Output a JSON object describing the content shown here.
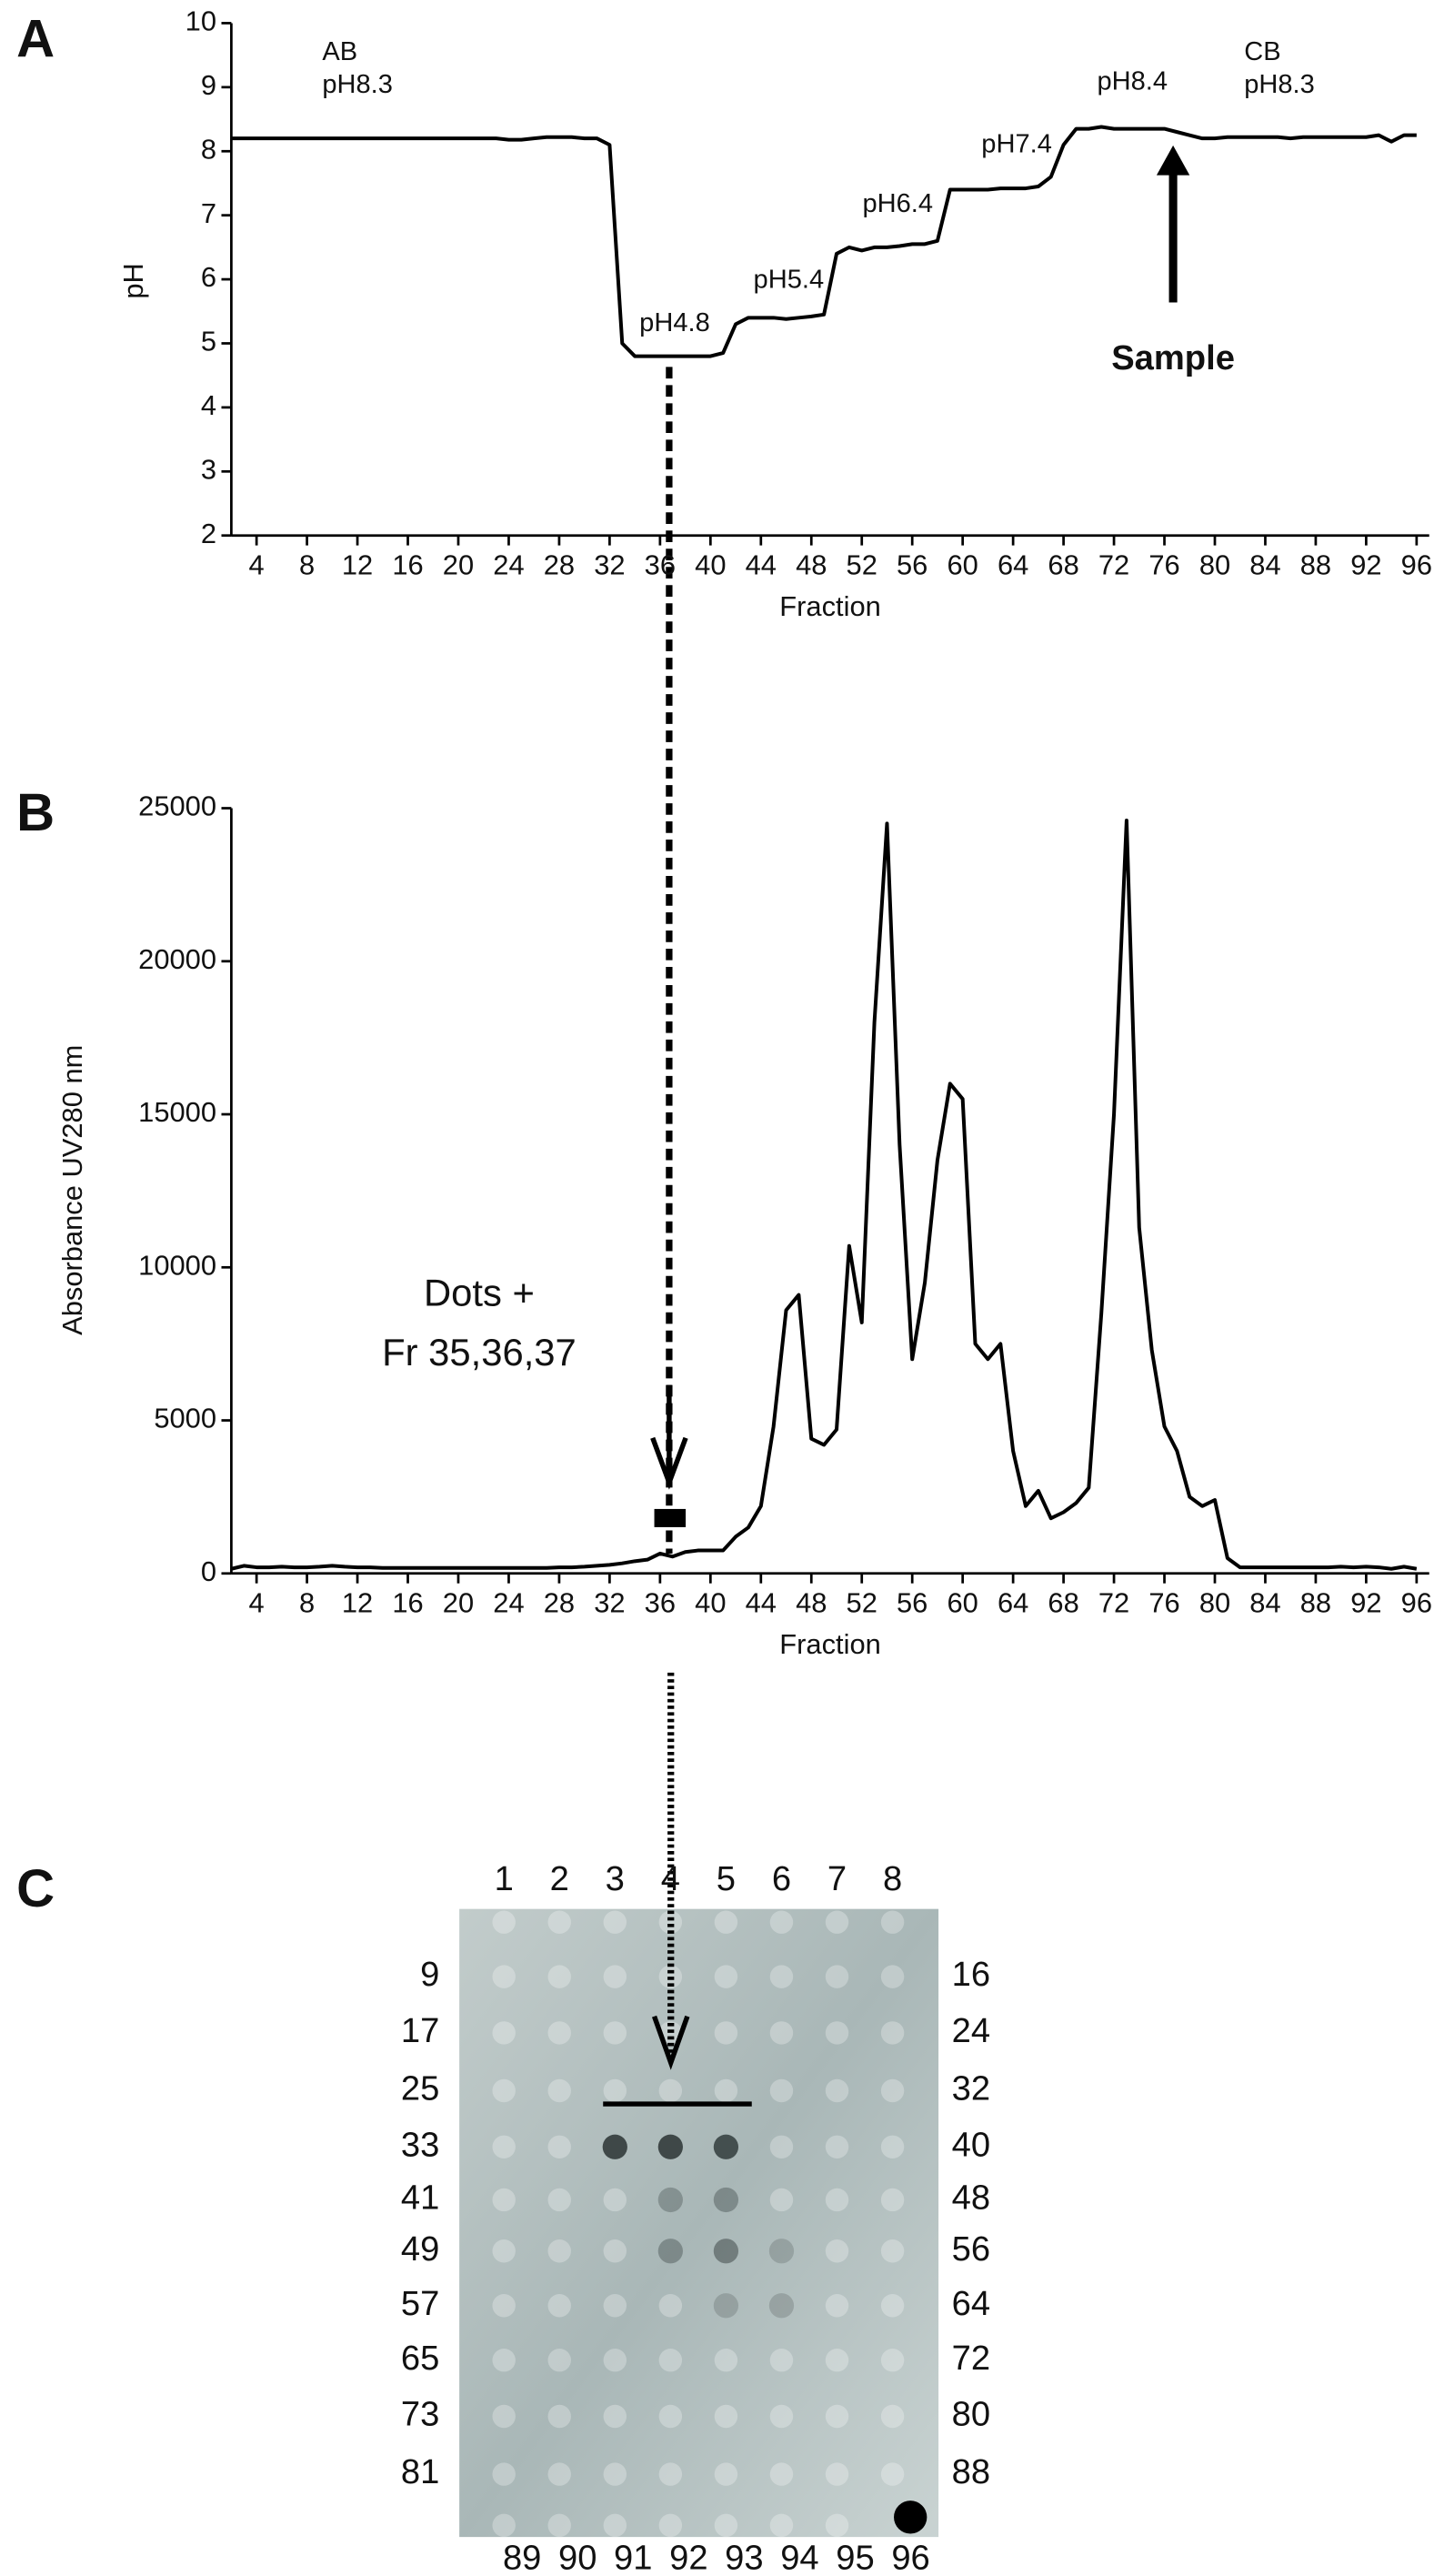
{
  "panels": [
    "A",
    "B",
    "C"
  ],
  "chart_data": [
    {
      "type": "line",
      "y_label": "pH",
      "x_label": "Fraction",
      "x": [
        2,
        3,
        4,
        5,
        6,
        7,
        8,
        9,
        10,
        11,
        12,
        13,
        14,
        15,
        16,
        17,
        18,
        19,
        20,
        21,
        22,
        23,
        24,
        25,
        26,
        27,
        28,
        29,
        30,
        31,
        32,
        33,
        34,
        35,
        36,
        37,
        38,
        39,
        40,
        41,
        42,
        43,
        44,
        45,
        46,
        47,
        48,
        49,
        50,
        51,
        52,
        53,
        54,
        55,
        56,
        57,
        58,
        59,
        60,
        61,
        62,
        63,
        64,
        65,
        66,
        67,
        68,
        69,
        70,
        71,
        72,
        73,
        74,
        75,
        76,
        77,
        78,
        79,
        80,
        81,
        82,
        83,
        84,
        85,
        86,
        87,
        88,
        89,
        90,
        91,
        92,
        93,
        94,
        95,
        96
      ],
      "values": [
        8.2,
        8.2,
        8.2,
        8.2,
        8.2,
        8.2,
        8.2,
        8.2,
        8.2,
        8.2,
        8.2,
        8.2,
        8.2,
        8.2,
        8.2,
        8.2,
        8.2,
        8.2,
        8.2,
        8.2,
        8.2,
        8.2,
        8.18,
        8.18,
        8.2,
        8.22,
        8.22,
        8.22,
        8.2,
        8.2,
        8.1,
        5.0,
        4.8,
        4.8,
        4.8,
        4.8,
        4.8,
        4.8,
        4.8,
        4.85,
        5.3,
        5.4,
        5.4,
        5.4,
        5.38,
        5.4,
        5.42,
        5.45,
        6.4,
        6.5,
        6.45,
        6.5,
        6.5,
        6.52,
        6.55,
        6.55,
        6.6,
        7.4,
        7.4,
        7.4,
        7.4,
        7.42,
        7.42,
        7.42,
        7.45,
        7.6,
        8.1,
        8.35,
        8.35,
        8.38,
        8.35,
        8.35,
        8.35,
        8.35,
        8.35,
        8.3,
        8.25,
        8.2,
        8.2,
        8.22,
        8.22,
        8.22,
        8.22,
        8.22,
        8.2,
        8.22,
        8.22,
        8.22,
        8.22,
        8.22,
        8.22,
        8.25,
        8.15,
        8.25,
        8.25
      ],
      "color": "#000000",
      "xlim": [
        2,
        97
      ],
      "xticks": [
        4,
        8,
        12,
        16,
        20,
        24,
        28,
        32,
        36,
        40,
        44,
        48,
        52,
        56,
        60,
        64,
        68,
        72,
        76,
        80,
        84,
        88,
        92,
        96
      ],
      "ylim": [
        2,
        10
      ],
      "yticks": [
        2,
        3,
        4,
        5,
        6,
        7,
        8,
        9,
        10
      ],
      "annotations": [
        "AB",
        "pH8.3",
        "pH4.8",
        "pH5.4",
        "pH6.4",
        "pH7.4",
        "pH8.4",
        "CB",
        "pH8.3",
        "Sample"
      ]
    },
    {
      "type": "line",
      "y_label": "Absorbance UV280 nm",
      "x_label": "Fraction",
      "x": [
        2,
        3,
        4,
        5,
        6,
        7,
        8,
        9,
        10,
        11,
        12,
        13,
        14,
        15,
        16,
        17,
        18,
        19,
        20,
        21,
        22,
        23,
        24,
        25,
        26,
        27,
        28,
        29,
        30,
        31,
        32,
        33,
        34,
        35,
        36,
        37,
        38,
        39,
        40,
        41,
        42,
        43,
        44,
        45,
        46,
        47,
        48,
        49,
        50,
        51,
        52,
        53,
        54,
        55,
        56,
        57,
        58,
        59,
        60,
        61,
        62,
        63,
        64,
        65,
        66,
        67,
        68,
        69,
        70,
        71,
        72,
        73,
        74,
        75,
        76,
        77,
        78,
        79,
        80,
        81,
        82,
        83,
        84,
        85,
        86,
        87,
        88,
        89,
        90,
        91,
        92,
        93,
        94,
        95,
        96
      ],
      "values": [
        150,
        250,
        200,
        200,
        220,
        200,
        200,
        220,
        250,
        220,
        200,
        200,
        180,
        180,
        180,
        180,
        180,
        180,
        180,
        180,
        180,
        180,
        180,
        180,
        180,
        180,
        200,
        200,
        220,
        250,
        280,
        330,
        400,
        450,
        650,
        550,
        700,
        750,
        750,
        750,
        1200,
        1500,
        2200,
        4800,
        8600,
        9100,
        4400,
        4200,
        4700,
        10700,
        8200,
        18000,
        24500,
        14000,
        7000,
        9500,
        13500,
        16000,
        15500,
        7500,
        7000,
        7500,
        4000,
        2200,
        2700,
        1800,
        2000,
        2300,
        2800,
        8500,
        15000,
        24600,
        11300,
        7300,
        4800,
        4000,
        2500,
        2200,
        2400,
        500,
        200,
        200,
        200,
        200,
        200,
        200,
        200,
        200,
        220,
        200,
        220,
        200,
        150,
        220,
        150
      ],
      "color": "#000000",
      "xlim": [
        2,
        97
      ],
      "xticks": [
        4,
        8,
        12,
        16,
        20,
        24,
        28,
        32,
        36,
        40,
        44,
        48,
        52,
        56,
        60,
        64,
        68,
        72,
        76,
        80,
        84,
        88,
        92,
        96
      ],
      "ylim": [
        0,
        25000
      ],
      "yticks": [
        0,
        5000,
        10000,
        15000,
        20000,
        25000
      ],
      "annotations": [
        "Dots +",
        "Fr 35,36,37"
      ]
    }
  ],
  "blot": {
    "column_labels": [
      1,
      2,
      3,
      4,
      5,
      6,
      7,
      8
    ],
    "row_labels_left": [
      9,
      17,
      25,
      33,
      41,
      49,
      57,
      65,
      73,
      81
    ],
    "row_labels_right": [
      16,
      24,
      32,
      40,
      48,
      56,
      64,
      72,
      80,
      88
    ],
    "bottom_labels": [
      89,
      90,
      91,
      92,
      93,
      94,
      95,
      96
    ]
  }
}
